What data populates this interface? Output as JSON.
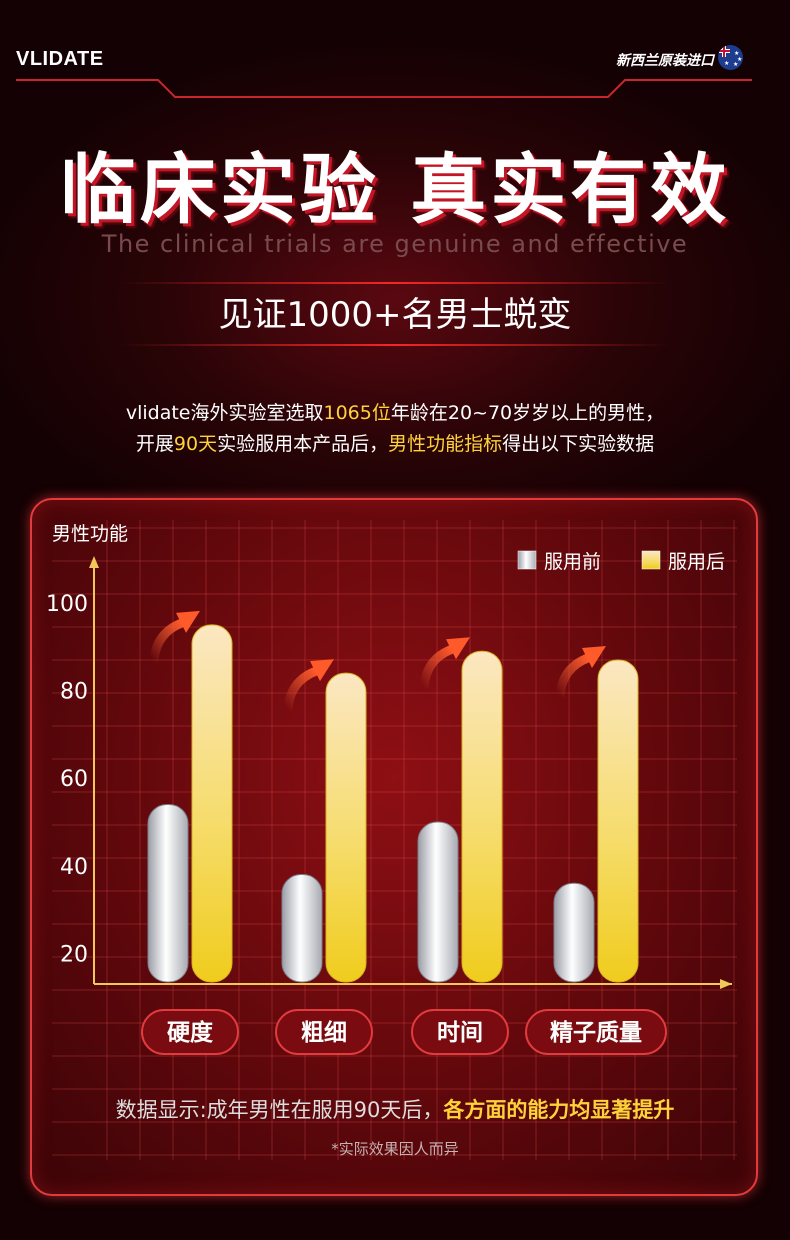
{
  "header": {
    "brand": "VLIDATE",
    "origin": "新西兰原装进口"
  },
  "headline": {
    "title": "临床实验  真实有效",
    "subtitle_en": "The clinical trials are genuine and effective",
    "witness": "见证1000+名男士蜕变"
  },
  "description": {
    "line1_a": "vlidate海外实验室选取",
    "line1_hl": "1065位",
    "line1_b": "年龄在20~70岁岁以上的男性，",
    "line2_a": "开展",
    "line2_hl1": "90天",
    "line2_b": "实验服用本产品后，",
    "line2_hl2": "男性功能指标",
    "line2_c": "得出以下实验数据"
  },
  "chart_data": {
    "type": "bar",
    "ylabel": "男性功能",
    "yticks": [
      20,
      40,
      60,
      80,
      100
    ],
    "ylim": [
      13,
      108
    ],
    "categories": [
      "硬度",
      "粗细",
      "时间",
      "精子质量"
    ],
    "series": [
      {
        "name": "服用前",
        "values": [
          54,
          38,
          50,
          36
        ],
        "color": "#e6e6ea"
      },
      {
        "name": "服用后",
        "values": [
          95,
          84,
          89,
          87
        ],
        "color": "#f3d23a"
      }
    ],
    "legend": "top-right"
  },
  "notes": {
    "summary_a": "数据显示:成年男性在服用90天后，",
    "summary_hl": "各方面的能力均显著提升",
    "disclaimer": "*实际效果因人而异"
  },
  "colors": {
    "accent_red": "#e4212b",
    "highlight_yellow": "#ffd23a"
  }
}
